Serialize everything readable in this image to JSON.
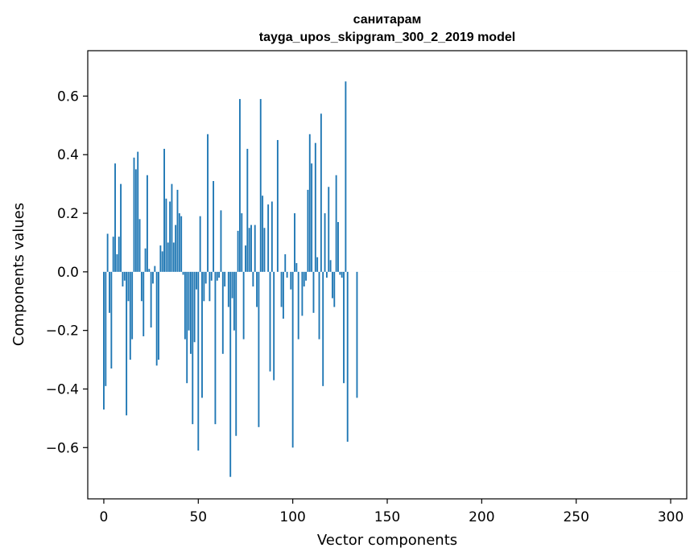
{
  "chart_data": {
    "type": "bar",
    "title": "санитарам",
    "subtitle": "tayga_upos_skipgram_300_2_2019 model",
    "xlabel": "Vector components",
    "ylabel": "Components values",
    "xlim": [
      -8.5,
      308.5
    ],
    "ylim": [
      -0.775,
      0.755
    ],
    "xticks": [
      0,
      50,
      100,
      150,
      200,
      250,
      300
    ],
    "xtick_labels": [
      "0",
      "50",
      "100",
      "150",
      "200",
      "250",
      "300"
    ],
    "yticks": [
      -0.6,
      -0.4,
      -0.2,
      0.0,
      0.2,
      0.4,
      0.6
    ],
    "ytick_labels": [
      "−0.6",
      "−0.4",
      "−0.2",
      "0.0",
      "0.2",
      "0.4",
      "0.6"
    ],
    "bar_color": "#1f77b4",
    "grid": false,
    "values": [
      -0.47,
      -0.39,
      0.13,
      -0.14,
      -0.33,
      0.12,
      0.37,
      0.06,
      0.12,
      0.3,
      -0.05,
      -0.03,
      -0.49,
      -0.1,
      -0.3,
      -0.23,
      0.39,
      0.35,
      0.41,
      0.18,
      -0.1,
      -0.22,
      0.08,
      0.33,
      0.01,
      -0.19,
      -0.04,
      0.02,
      -0.32,
      -0.3,
      0.09,
      0.07,
      0.42,
      0.25,
      0.1,
      0.24,
      0.3,
      0.1,
      0.16,
      0.28,
      0.2,
      0.19,
      -0.01,
      -0.23,
      -0.38,
      -0.2,
      -0.28,
      -0.52,
      -0.24,
      -0.06,
      -0.61,
      0.19,
      -0.43,
      -0.1,
      -0.04,
      0.47,
      -0.1,
      -0.03,
      0.31,
      -0.52,
      -0.03,
      -0.02,
      0.21,
      -0.28,
      -0.05,
      0.0,
      -0.12,
      -0.7,
      -0.09,
      -0.2,
      -0.56,
      0.14,
      0.59,
      0.2,
      -0.23,
      0.09,
      0.42,
      0.15,
      0.16,
      -0.05,
      0.16,
      -0.12,
      -0.53,
      0.59,
      0.26,
      0.15,
      0.0,
      0.23,
      -0.34,
      0.24,
      -0.37,
      0.0,
      0.45,
      0.0,
      -0.12,
      -0.16,
      0.06,
      -0.02,
      0.0,
      -0.06,
      -0.6,
      0.2,
      0.03,
      -0.23,
      0.0,
      -0.15,
      -0.05,
      -0.03,
      0.28,
      0.47,
      0.37,
      -0.14,
      0.44,
      0.05,
      -0.23,
      0.54,
      -0.39,
      0.2,
      -0.02,
      0.29,
      0.04,
      -0.09,
      -0.12,
      0.33,
      0.17,
      -0.01,
      -0.02,
      -0.38,
      0.65,
      -0.58,
      0.0,
      0.0,
      0.0,
      0.0,
      -0.43,
      0.0,
      0.0,
      0.0,
      0.0,
      0.0,
      0.0,
      0.0,
      0.0,
      0.0,
      0.0,
      0.0,
      0.0,
      0.0,
      0.0,
      0.0,
      0.0,
      0.0,
      0.0,
      0.0,
      0.0,
      0.0,
      0.0,
      0.0,
      0.0,
      0.0,
      0.0,
      0.0,
      0.0,
      0.0,
      0.0,
      0.0,
      0.0,
      0.0,
      0.0,
      0.0,
      0.0,
      0.0,
      0.0,
      0.0,
      0.0,
      0.0,
      0.0,
      0.0,
      0.0,
      0.0,
      0.0,
      0.0,
      0.0,
      0.0,
      0.0,
      0.0,
      0.0,
      0.0,
      0.0,
      0.0,
      0.0,
      0.0,
      0.0,
      0.0,
      0.0,
      0.0,
      0.0,
      0.0,
      0.0,
      0.0,
      0.0,
      0.0,
      0.0,
      0.0,
      0.0,
      0.0,
      0.0,
      0.0,
      0.0,
      0.0,
      0.0,
      0.0,
      0.0,
      0.0,
      0.0,
      0.0,
      0.0,
      0.0,
      0.0,
      0.0,
      0.0,
      0.0,
      0.0,
      0.0,
      0.0,
      0.0,
      0.0,
      0.0,
      0.0,
      0.0,
      0.0,
      0.0,
      0.0,
      0.0,
      0.0,
      0.0,
      0.0,
      0.0,
      0.0,
      0.0,
      0.0,
      0.0,
      0.0,
      0.0,
      0.0,
      0.0,
      0.0,
      0.0,
      0.0,
      0.0,
      0.0,
      0.0,
      0.0,
      0.0,
      0.0,
      0.0,
      0.0,
      0.0,
      0.0,
      0.0,
      0.0,
      0.0,
      0.0,
      0.0,
      0.0,
      0.0,
      0.0,
      0.0,
      0.0,
      0.0,
      0.0,
      0.0,
      0.0,
      0.0,
      0.0,
      0.0,
      0.0,
      0.0,
      0.0,
      0.0,
      0.0,
      0.0,
      0.0,
      0.0,
      0.0,
      0.0,
      0.0,
      0.0,
      0.0,
      0.0,
      0.0,
      0.0,
      0.0,
      0.0,
      0.0,
      0.0,
      0.0,
      0.0,
      0.0,
      0.0,
      0.0,
      0.0,
      0.0,
      0.0,
      0.0,
      0.0
    ]
  }
}
